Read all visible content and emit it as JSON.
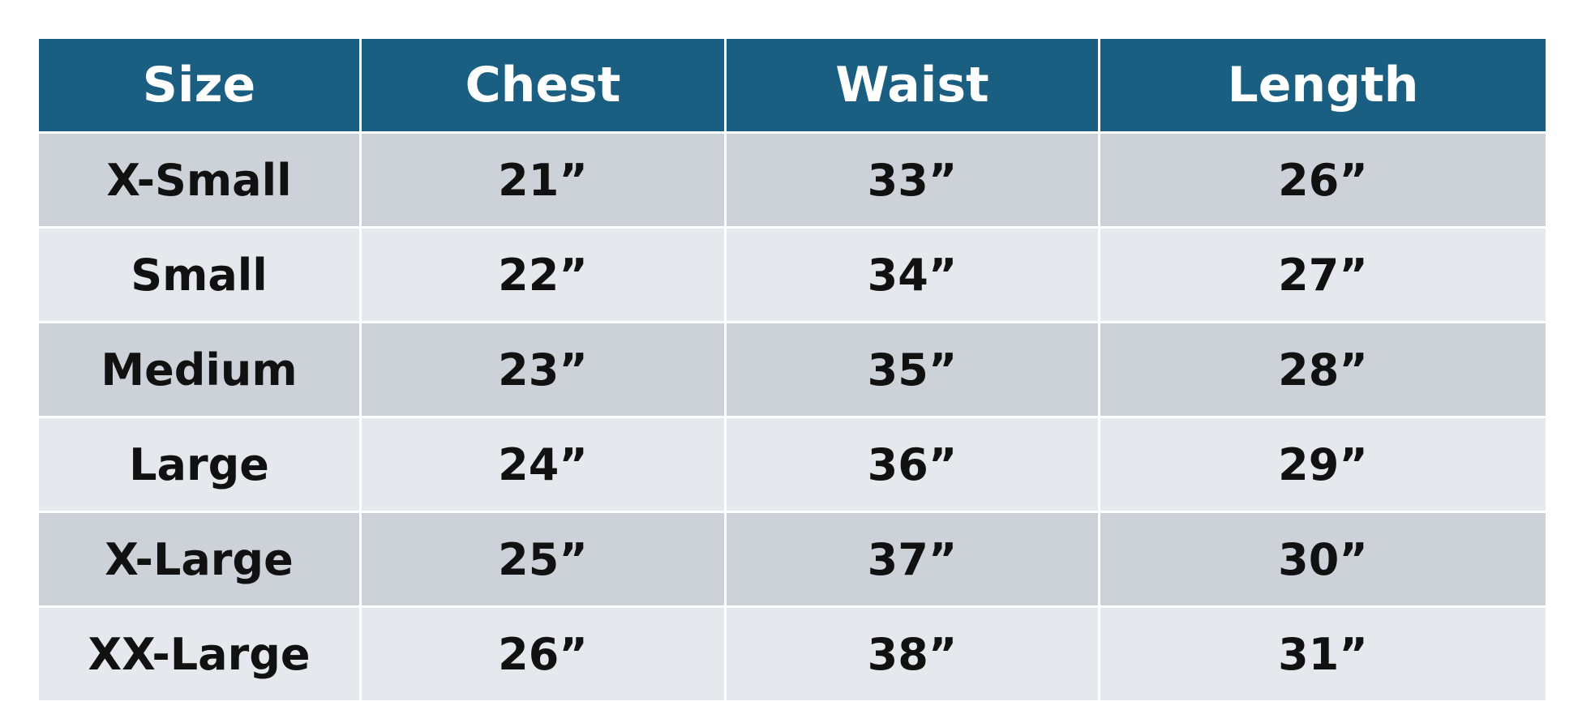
{
  "table": {
    "header": [
      "Size",
      "Chest",
      "Waist",
      "Length"
    ],
    "rows": [
      [
        "X-Small",
        "21”",
        "33”",
        "26”"
      ],
      [
        "Small",
        "22”",
        "34”",
        "27”"
      ],
      [
        "Medium",
        "23”",
        "35”",
        "28”"
      ],
      [
        "Large",
        "24”",
        "36”",
        "29”"
      ],
      [
        "X-Large",
        "25”",
        "37”",
        "30”"
      ],
      [
        "XX-Large",
        "26”",
        "38”",
        "31”"
      ]
    ]
  }
}
